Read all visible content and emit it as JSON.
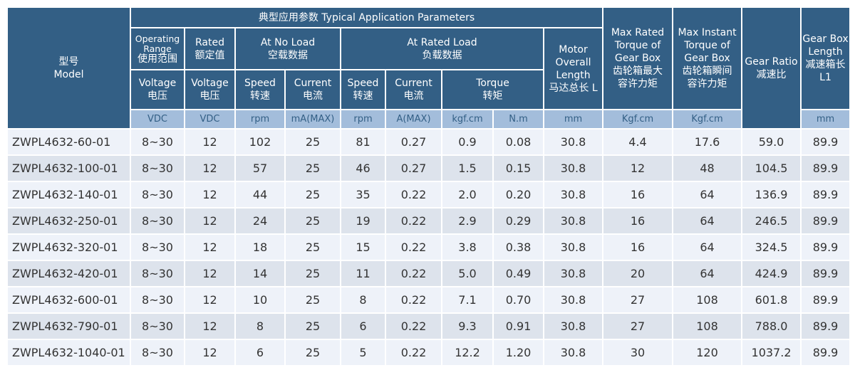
{
  "header": {
    "model": [
      "型号",
      "Model"
    ],
    "title": "典型应用参数  Typical Application Parameters",
    "operating_range": [
      "Operating",
      "Range",
      "使用范围"
    ],
    "rated": [
      "Rated",
      "额定值"
    ],
    "no_load": [
      "At No Load",
      "空载数据"
    ],
    "rated_load": [
      "At Rated Load",
      "负载数据"
    ],
    "motor_length": [
      "Motor",
      "Overall",
      "Length",
      "马达总长 L"
    ],
    "max_rated_torque": [
      "Max Rated",
      "Torque of",
      "Gear Box",
      "齿轮箱最大",
      "容许力矩"
    ],
    "max_instant_torque": [
      "Max Instant",
      "Torque of",
      "Gear Box",
      "齿轮箱瞬间",
      "容许力矩"
    ],
    "gear_ratio": [
      "Gear Ratio",
      "减速比"
    ],
    "gearbox_length": [
      "Gear Box",
      "Length",
      "减速箱长",
      "L1"
    ],
    "sub": {
      "op_voltage": [
        "Voltage",
        "电压"
      ],
      "rated_voltage": [
        "Voltage",
        "电压"
      ],
      "nl_speed": [
        "Speed",
        "转速"
      ],
      "nl_current": [
        "Current",
        "电流"
      ],
      "rl_speed": [
        "Speed",
        "转速"
      ],
      "rl_current": [
        "Current",
        "电流"
      ],
      "torque": [
        "Torque",
        "转矩"
      ]
    },
    "units": [
      "VDC",
      "VDC",
      "rpm",
      "mA(MAX)",
      "rpm",
      "A(MAX)",
      "kgf.cm",
      "N.m",
      "mm",
      "Kgf.cm",
      "Kgf.cm",
      "mm"
    ]
  },
  "rows": [
    [
      "ZWPL4632-60-01",
      "8~30",
      "12",
      "102",
      "25",
      "81",
      "0.27",
      "0.9",
      "0.08",
      "30.8",
      "4.4",
      "17.6",
      "59.0",
      "89.9"
    ],
    [
      "ZWPL4632-100-01",
      "8~30",
      "12",
      "57",
      "25",
      "46",
      "0.27",
      "1.5",
      "0.15",
      "30.8",
      "12",
      "48",
      "104.5",
      "89.9"
    ],
    [
      "ZWPL4632-140-01",
      "8~30",
      "12",
      "44",
      "25",
      "35",
      "0.22",
      "2.0",
      "0.20",
      "30.8",
      "16",
      "64",
      "136.9",
      "89.9"
    ],
    [
      "ZWPL4632-250-01",
      "8~30",
      "12",
      "24",
      "25",
      "19",
      "0.22",
      "2.9",
      "0.29",
      "30.8",
      "16",
      "64",
      "246.5",
      "89.9"
    ],
    [
      "ZWPL4632-320-01",
      "8~30",
      "12",
      "18",
      "25",
      "15",
      "0.22",
      "3.8",
      "0.38",
      "30.8",
      "16",
      "64",
      "324.5",
      "89.9"
    ],
    [
      "ZWPL4632-420-01",
      "8~30",
      "12",
      "14",
      "25",
      "11",
      "0.22",
      "5.0",
      "0.49",
      "30.8",
      "20",
      "64",
      "424.9",
      "89.9"
    ],
    [
      "ZWPL4632-600-01",
      "8~30",
      "12",
      "10",
      "25",
      "8",
      "0.22",
      "7.1",
      "0.70",
      "30.8",
      "27",
      "108",
      "601.8",
      "89.9"
    ],
    [
      "ZWPL4632-790-01",
      "8~30",
      "12",
      "8",
      "25",
      "6",
      "0.22",
      "9.3",
      "0.91",
      "30.8",
      "27",
      "108",
      "788.0",
      "89.9"
    ],
    [
      "ZWPL4632-1040-01",
      "8~30",
      "12",
      "6",
      "25",
      "5",
      "0.22",
      "12.2",
      "1.20",
      "30.8",
      "30",
      "120",
      "1037.2",
      "89.9"
    ]
  ]
}
